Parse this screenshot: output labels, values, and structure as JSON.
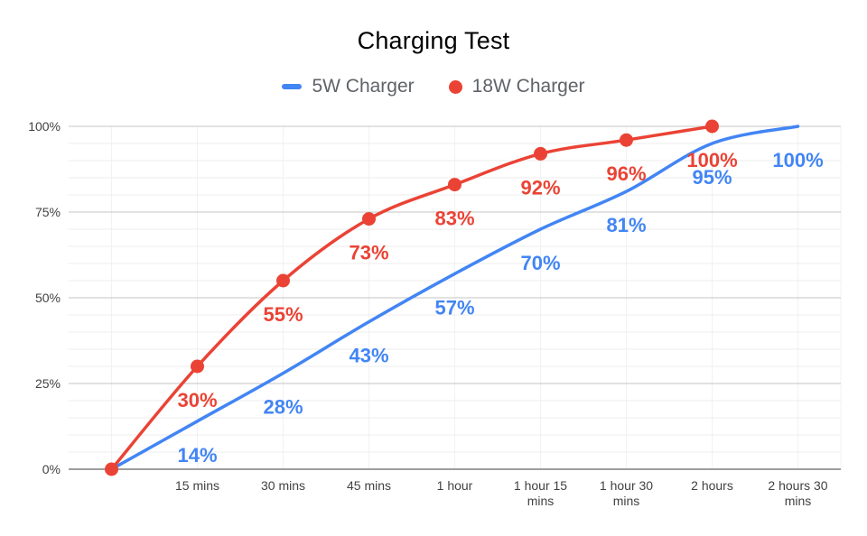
{
  "chart_data": {
    "type": "line",
    "title": "Charging Test",
    "xlabel": "",
    "ylabel": "",
    "categories": [
      "",
      "15 mins",
      "30 mins",
      "45 mins",
      "1 hour",
      "1 hour 15 mins",
      "1 hour 30 mins",
      "2 hours",
      "2 hours 30 mins"
    ],
    "x_minutes": [
      0,
      15,
      30,
      45,
      60,
      75,
      90,
      120,
      150
    ],
    "ylim": [
      0,
      100
    ],
    "y_ticks": [
      "0%",
      "25%",
      "50%",
      "75%",
      "100%"
    ],
    "grid": {
      "minor_step": 5,
      "major_step": 25,
      "vertical": true
    },
    "legend_position": "top",
    "series": [
      {
        "name": "5W Charger",
        "color": "#4285f4",
        "marker": "none",
        "smooth": true,
        "values": [
          0,
          14,
          28,
          43,
          57,
          70,
          81,
          95,
          100
        ],
        "point_labels": [
          "",
          "14%",
          "28%",
          "43%",
          "57%",
          "70%",
          "81%",
          "95%",
          "100%"
        ]
      },
      {
        "name": "18W Charger",
        "color": "#ea4335",
        "marker": "circle",
        "smooth": true,
        "values": [
          0,
          30,
          55,
          73,
          83,
          92,
          96,
          100,
          null
        ],
        "point_labels": [
          "",
          "30%",
          "55%",
          "73%",
          "83%",
          "92%",
          "96%",
          "100%",
          ""
        ]
      }
    ],
    "colors": {
      "title_text": "#000000",
      "legend_text": "#5f6368",
      "tick_text": "#424242",
      "grid_minor": "#eeeeee",
      "grid_major": "#c4c4c4",
      "grid_vertical": "#f2f2f2",
      "axis_line": "#9e9e9e"
    }
  }
}
